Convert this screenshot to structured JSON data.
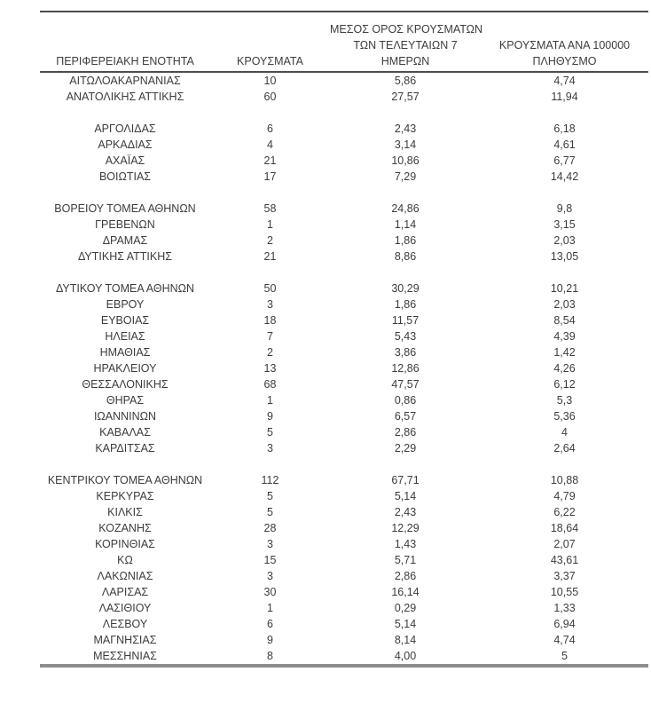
{
  "table": {
    "headers": {
      "region": "ΠΕΡΙΦΕΡΕΙΑΚΗ ΕΝΟΤΗΤΑ",
      "cases": "ΚΡΟΥΣΜΑΤΑ",
      "avg7_line1": "ΜΕΣΟΣ ΟΡΟΣ ΚΡΟΥΣΜΑΤΩΝ",
      "avg7_line2": "ΤΩΝ ΤΕΛΕΥΤΑΙΩΝ 7",
      "avg7_line3": "ΗΜΕΡΩΝ",
      "per100k_line1": "ΚΡΟΥΣΜΑΤΑ ΑΝΑ 100000",
      "per100k_line2": "ΠΛΗΘΥΣΜΟ"
    },
    "colors": {
      "text": "#3c3c3c",
      "rule_dark": "#4d4d4d",
      "rule_gray": "#8c8c8c"
    },
    "groups": [
      {
        "rows": [
          {
            "region": "ΑΙΤΩΛΟΑΚΑΡΝΑΝΙΑΣ",
            "cases": "10",
            "avg7": "5,86",
            "per100k": "4,74"
          },
          {
            "region": "ΑΝΑΤΟΛΙΚΗΣ ΑΤΤΙΚΗΣ",
            "cases": "60",
            "avg7": "27,57",
            "per100k": "11,94"
          }
        ]
      },
      {
        "rows": [
          {
            "region": "ΑΡΓΟΛΙΔΑΣ",
            "cases": "6",
            "avg7": "2,43",
            "per100k": "6,18"
          },
          {
            "region": "ΑΡΚΑΔΙΑΣ",
            "cases": "4",
            "avg7": "3,14",
            "per100k": "4,61"
          },
          {
            "region": "ΑΧΑΪΑΣ",
            "cases": "21",
            "avg7": "10,86",
            "per100k": "6,77"
          },
          {
            "region": "ΒΟΙΩΤΙΑΣ",
            "cases": "17",
            "avg7": "7,29",
            "per100k": "14,42"
          }
        ]
      },
      {
        "rows": [
          {
            "region": "ΒΟΡΕΙΟΥ ΤΟΜΕΑ ΑΘΗΝΩΝ",
            "cases": "58",
            "avg7": "24,86",
            "per100k": "9,8"
          },
          {
            "region": "ΓΡΕΒΕΝΩΝ",
            "cases": "1",
            "avg7": "1,14",
            "per100k": "3,15"
          },
          {
            "region": "ΔΡΑΜΑΣ",
            "cases": "2",
            "avg7": "1,86",
            "per100k": "2,03"
          },
          {
            "region": "ΔΥΤΙΚΗΣ ΑΤΤΙΚΗΣ",
            "cases": "21",
            "avg7": "8,86",
            "per100k": "13,05"
          }
        ]
      },
      {
        "rows": [
          {
            "region": "ΔΥΤΙΚΟΥ ΤΟΜΕΑ ΑΘΗΝΩΝ",
            "cases": "50",
            "avg7": "30,29",
            "per100k": "10,21"
          },
          {
            "region": "ΕΒΡΟΥ",
            "cases": "3",
            "avg7": "1,86",
            "per100k": "2,03"
          },
          {
            "region": "ΕΥΒΟΙΑΣ",
            "cases": "18",
            "avg7": "11,57",
            "per100k": "8,54"
          },
          {
            "region": "ΗΛΕΙΑΣ",
            "cases": "7",
            "avg7": "5,43",
            "per100k": "4,39"
          },
          {
            "region": "ΗΜΑΘΙΑΣ",
            "cases": "2",
            "avg7": "3,86",
            "per100k": "1,42"
          },
          {
            "region": "ΗΡΑΚΛΕΙΟΥ",
            "cases": "13",
            "avg7": "12,86",
            "per100k": "4,26"
          },
          {
            "region": "ΘΕΣΣΑΛΟΝΙΚΗΣ",
            "cases": "68",
            "avg7": "47,57",
            "per100k": "6,12"
          },
          {
            "region": "ΘΗΡΑΣ",
            "cases": "1",
            "avg7": "0,86",
            "per100k": "5,3"
          },
          {
            "region": "ΙΩΑΝΝΙΝΩΝ",
            "cases": "9",
            "avg7": "6,57",
            "per100k": "5,36"
          },
          {
            "region": "ΚΑΒΑΛΑΣ",
            "cases": "5",
            "avg7": "2,86",
            "per100k": "4"
          },
          {
            "region": "ΚΑΡΔΙΤΣΑΣ",
            "cases": "3",
            "avg7": "2,29",
            "per100k": "2,64"
          }
        ]
      },
      {
        "rows": [
          {
            "region": "ΚΕΝΤΡΙΚΟΥ ΤΟΜΕΑ ΑΘΗΝΩΝ",
            "cases": "112",
            "avg7": "67,71",
            "per100k": "10,88"
          },
          {
            "region": "ΚΕΡΚΥΡΑΣ",
            "cases": "5",
            "avg7": "5,14",
            "per100k": "4,79"
          },
          {
            "region": "ΚΙΛΚΙΣ",
            "cases": "5",
            "avg7": "2,43",
            "per100k": "6,22"
          },
          {
            "region": "ΚΟΖΑΝΗΣ",
            "cases": "28",
            "avg7": "12,29",
            "per100k": "18,64"
          },
          {
            "region": "ΚΟΡΙΝΘΙΑΣ",
            "cases": "3",
            "avg7": "1,43",
            "per100k": "2,07"
          },
          {
            "region": "ΚΩ",
            "cases": "15",
            "avg7": "5,71",
            "per100k": "43,61"
          },
          {
            "region": "ΛΑΚΩΝΙΑΣ",
            "cases": "3",
            "avg7": "2,86",
            "per100k": "3,37"
          },
          {
            "region": "ΛΑΡΙΣΑΣ",
            "cases": "30",
            "avg7": "16,14",
            "per100k": "10,55"
          },
          {
            "region": "ΛΑΣΙΘΙΟΥ",
            "cases": "1",
            "avg7": "0,29",
            "per100k": "1,33"
          },
          {
            "region": "ΛΕΣΒΟΥ",
            "cases": "6",
            "avg7": "5,14",
            "per100k": "6,94"
          },
          {
            "region": "ΜΑΓΝΗΣΙΑΣ",
            "cases": "9",
            "avg7": "8,14",
            "per100k": "4,74"
          },
          {
            "region": "ΜΕΣΣΗΝΙΑΣ",
            "cases": "8",
            "avg7": "4,00",
            "per100k": "5"
          }
        ]
      }
    ]
  }
}
